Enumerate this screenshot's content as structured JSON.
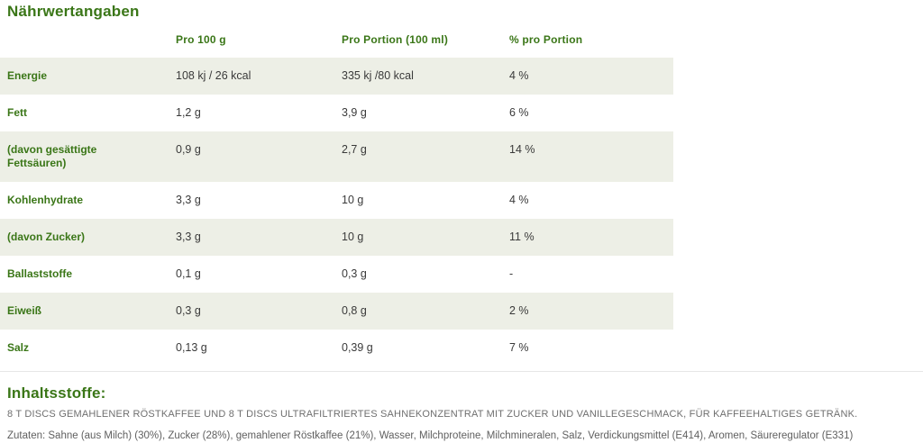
{
  "page": {
    "title": "Nährwertangaben",
    "colors": {
      "accent_green": "#3a7617",
      "row_shade": "#edefe6",
      "value_text": "#3a3a3a",
      "muted_text": "#6f6f6f"
    }
  },
  "nutrition_table": {
    "columns": {
      "col2": "Pro 100 g",
      "col3": "Pro Portion (100 ml)",
      "col4": "% pro Portion"
    },
    "rows": [
      {
        "label": "Energie",
        "per_100g": "108 kj / 26 kcal",
        "per_portion": "335 kj /80 kcal",
        "pct_portion": "4 %"
      },
      {
        "label": "Fett",
        "per_100g": "1,2 g",
        "per_portion": "3,9 g",
        "pct_portion": "6 %"
      },
      {
        "label": "(davon gesättigte Fettsäuren)",
        "per_100g": "0,9 g",
        "per_portion": "2,7 g",
        "pct_portion": "14 %"
      },
      {
        "label": "Kohlenhydrate",
        "per_100g": "3,3 g",
        "per_portion": "10 g",
        "pct_portion": "4 %"
      },
      {
        "label": "(davon Zucker)",
        "per_100g": "3,3 g",
        "per_portion": "10 g",
        "pct_portion": "11 %"
      },
      {
        "label": "Ballaststoffe",
        "per_100g": "0,1 g",
        "per_portion": "0,3 g",
        "pct_portion": "-"
      },
      {
        "label": "Eiweiß",
        "per_100g": "0,3 g",
        "per_portion": "0,8 g",
        "pct_portion": "2 %"
      },
      {
        "label": "Salz",
        "per_100g": "0,13 g",
        "per_portion": "0,39 g",
        "pct_portion": "7 %"
      }
    ]
  },
  "ingredients": {
    "heading": "Inhaltsstoffe:",
    "description": "8 T DISCS GEMAHLENER RÖSTKAFFEE UND 8 T DISCS ULTRAFILTRIERTES SAHNEKONZENTRAT MIT ZUCKER UND VANILLEGESCHMACK, FÜR KAFFEEHALTIGES GETRÄNK.",
    "zutaten": "Zutaten: Sahne (aus Milch) (30%), Zucker (28%), gemahlener Röstkaffee (21%), Wasser, Milchproteine, Milchmineralen, Salz, Verdickungsmittel (E414), Aromen, Säureregulator (E331)"
  }
}
